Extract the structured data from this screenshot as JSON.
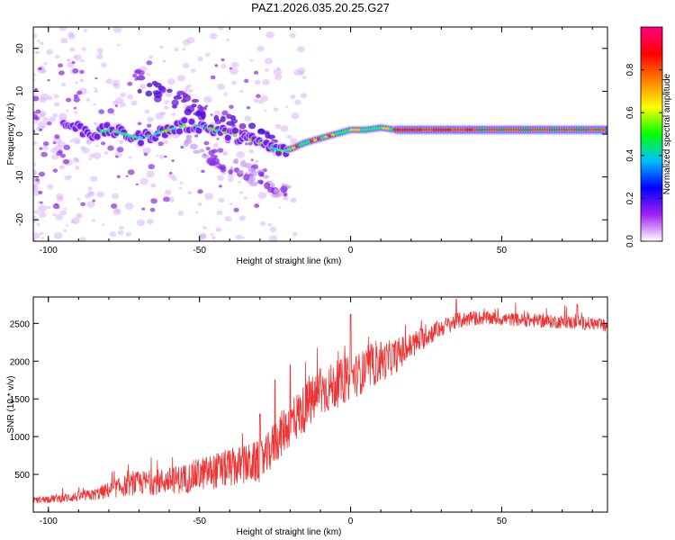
{
  "title": "PAZ1.2026.035.20.25.G27",
  "chart_data": [
    {
      "type": "heatmap",
      "title": "PAZ1.2026.035.20.25.G27",
      "xlabel": "Height of straight line (km)",
      "ylabel": "Frequency (Hz)",
      "xlim": [
        -105,
        85
      ],
      "ylim": [
        -25,
        25
      ],
      "xticks": [
        -100,
        -50,
        0,
        50
      ],
      "yticks": [
        -20,
        -10,
        0,
        10,
        20
      ],
      "ridge": {
        "description": "dominant spectral ridge (frequency vs height)",
        "x": [
          -92,
          -85,
          -80,
          -75,
          -70,
          -65,
          -60,
          -55,
          -50,
          -45,
          -40,
          -35,
          -30,
          -27,
          -25,
          -22,
          -20,
          -15,
          -10,
          -5,
          0,
          5,
          10,
          15,
          20,
          30,
          50,
          70,
          85
        ],
        "y": [
          2,
          0,
          1,
          0,
          -1,
          0,
          1,
          2,
          2,
          1,
          0,
          -1,
          -2,
          -3,
          -3.5,
          -4,
          -3.5,
          -2,
          -1,
          0,
          1,
          1,
          1.5,
          1,
          1,
          1,
          1,
          1,
          1
        ]
      },
      "colorbar": {
        "label": "Normalized spectral amplitude",
        "range": [
          0.0,
          1.0
        ],
        "ticks": [
          "0.0",
          "0.2",
          "0.4",
          "0.6",
          "0.8"
        ],
        "colors": [
          "#ffffff",
          "#a020f0",
          "#0000ff",
          "#00c0ff",
          "#00ff00",
          "#ffff00",
          "#ff8000",
          "#ff0000",
          "#ff0080"
        ]
      }
    },
    {
      "type": "line",
      "xlabel": "Height of straight line (km)",
      "ylabel": "SNR (10 * v/v)",
      "xlim": [
        -105,
        85
      ],
      "ylim": [
        0,
        2850
      ],
      "xticks": [
        -100,
        -50,
        0,
        50
      ],
      "yticks": [
        500,
        1000,
        1500,
        2000,
        2500
      ],
      "color": "#ee3333",
      "series": [
        {
          "name": "SNR",
          "x": [
            -105,
            -100,
            -95,
            -90,
            -85,
            -80,
            -75,
            -70,
            -65,
            -60,
            -55,
            -50,
            -45,
            -40,
            -35,
            -30,
            -28,
            -25,
            -20,
            -15,
            -10,
            -5,
            0,
            5,
            10,
            15,
            20,
            25,
            30,
            35,
            40,
            45,
            50,
            55,
            60,
            65,
            70,
            75,
            80,
            85
          ],
          "mean": [
            150,
            170,
            180,
            200,
            220,
            280,
            330,
            370,
            380,
            400,
            420,
            480,
            520,
            560,
            600,
            640,
            700,
            900,
            1150,
            1350,
            1550,
            1650,
            1750,
            1850,
            1950,
            2050,
            2180,
            2320,
            2430,
            2520,
            2560,
            2560,
            2550,
            2540,
            2530,
            2520,
            2510,
            2500,
            2490,
            2450
          ],
          "noise": [
            40,
            50,
            60,
            70,
            80,
            110,
            140,
            160,
            170,
            180,
            200,
            220,
            240,
            260,
            270,
            280,
            280,
            300,
            320,
            330,
            330,
            320,
            300,
            280,
            260,
            230,
            190,
            150,
            120,
            110,
            100,
            90,
            90,
            90,
            90,
            90,
            90,
            90,
            90,
            90
          ],
          "spikes": [
            [
              -30,
              1300
            ],
            [
              -25,
              1750
            ],
            [
              -20,
              1950
            ],
            [
              0,
              2620
            ],
            [
              -10,
              1900
            ],
            [
              10,
              2250
            ],
            [
              35,
              2820
            ],
            [
              75,
              2750
            ]
          ]
        }
      ]
    }
  ]
}
